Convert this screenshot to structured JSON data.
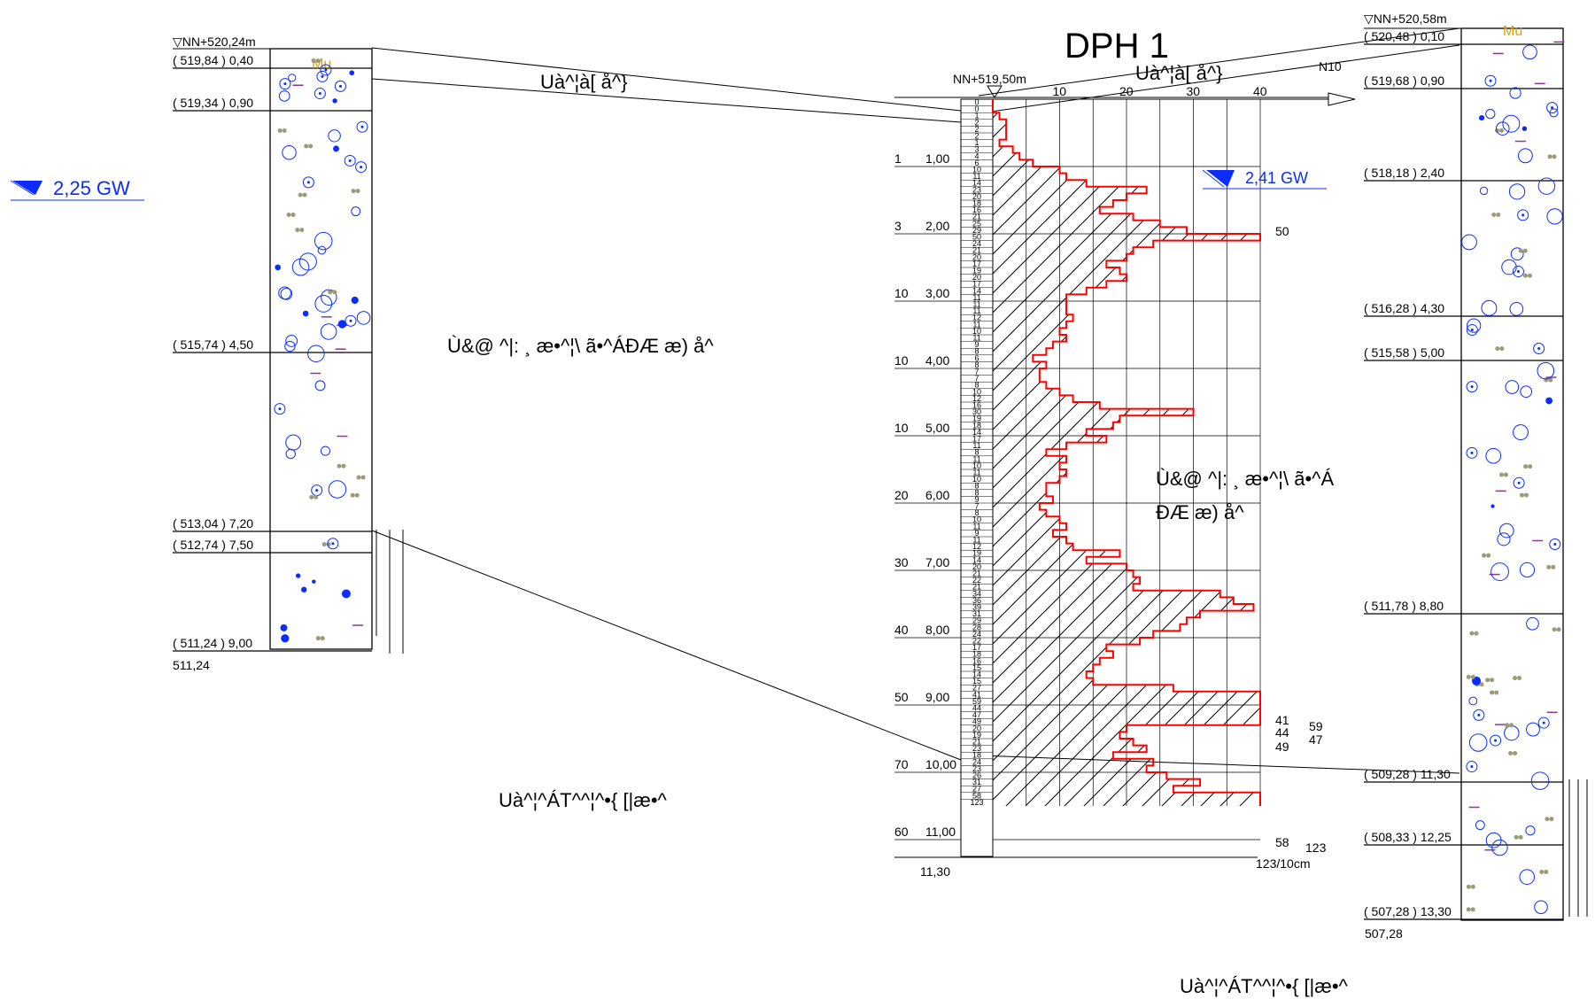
{
  "title": "DPH 1",
  "boreholes": {
    "left": {
      "top_elevation": "▽NN+520,24m",
      "bottom_label": "511,24",
      "groundwater": "2,25 GW",
      "top_unit_label": "Mu",
      "layers": [
        {
          "label": "( 519,84 ) 0,40"
        },
        {
          "label": "( 519,34 ) 0,90"
        },
        {
          "label": "( 515,74 ) 4,50"
        },
        {
          "label": "( 513,04 ) 7,20"
        },
        {
          "label": "( 512,74 ) 7,50"
        },
        {
          "label": "( 511,24 ) 9,00"
        }
      ]
    },
    "right": {
      "top_elevation": "▽NN+520,58m",
      "bottom_label": "507,28",
      "top_unit_label": "Mu",
      "layers": [
        {
          "label": "( 520,48 ) 0,10"
        },
        {
          "label": "( 519,68 ) 0,90"
        },
        {
          "label": "( 518,18 ) 2,40"
        },
        {
          "label": "( 516,28 ) 4,30"
        },
        {
          "label": "( 515,58 ) 5,00"
        },
        {
          "label": "( 511,78 ) 8,80"
        },
        {
          "label": "( 509,28 ) 11,30"
        },
        {
          "label": "( 508,33 ) 12,25"
        },
        {
          "label": "( 507,28 ) 13,30"
        }
      ]
    }
  },
  "probe": {
    "top_elevation": "NN+519,50m",
    "groundwater": "2,41 GW",
    "axis_label": "N10",
    "axis_ticks": [
      "10",
      "20",
      "30",
      "40"
    ],
    "bottom_depth": "11,30",
    "unit_note": "123/10cm",
    "depth_labels": [
      {
        "n": "1",
        "depth": "1,00"
      },
      {
        "n": "3",
        "depth": "2,00"
      },
      {
        "n": "10",
        "depth": "3,00"
      },
      {
        "n": "10",
        "depth": "4,00"
      },
      {
        "n": "10",
        "depth": "5,00"
      },
      {
        "n": "20",
        "depth": "6,00"
      },
      {
        "n": "30",
        "depth": "7,00"
      },
      {
        "n": "40",
        "depth": "8,00"
      },
      {
        "n": "50",
        "depth": "9,00"
      },
      {
        "n": "70",
        "depth": "10,00"
      },
      {
        "n": "60",
        "depth": "11,00"
      }
    ],
    "blows": [
      0,
      0,
      1,
      2,
      2,
      2,
      1,
      3,
      4,
      6,
      10,
      11,
      14,
      23,
      20,
      18,
      16,
      21,
      25,
      29,
      50,
      24,
      21,
      20,
      17,
      19,
      20,
      17,
      14,
      11,
      11,
      11,
      12,
      11,
      10,
      11,
      9,
      8,
      6,
      8,
      7,
      7,
      8,
      10,
      12,
      16,
      30,
      19,
      18,
      14,
      17,
      11,
      8,
      11,
      10,
      11,
      10,
      8,
      8,
      9,
      7,
      8,
      10,
      11,
      9,
      11,
      12,
      19,
      14,
      20,
      21,
      22,
      21,
      34,
      36,
      39,
      31,
      29,
      28,
      24,
      22,
      17,
      18,
      16,
      15,
      14,
      15,
      27,
      41,
      59,
      44,
      47,
      49,
      20,
      19,
      21,
      23,
      18,
      24,
      23,
      26,
      31,
      27,
      58,
      123
    ],
    "peak_labels": [
      "50",
      "41",
      "59",
      "44",
      "47",
      "49",
      "58",
      "123"
    ]
  },
  "annotations": {
    "garbled_1": "Uà^¦à[ å^}",
    "garbled_2": "Uà^¦à[ å^}",
    "garbled_3": "Ù&@ ^|: ¸ æ•^¦\\ ã•^ÁÐÆ æ) å^",
    "garbled_4": "Ù&@ ^|: ¸ æ•^¦\\ ã•^Á",
    "garbled_4b": "ÐÆ æ) å^",
    "garbled_5": "Uà^¦^ÁT^^¦^•{ [|æ•^",
    "garbled_6": "Uà^¦^ÁT^^¦^•{ [|æ•^"
  },
  "colors": {
    "profile": "#ff0000",
    "groundwater": "#0a2cff",
    "soil_symbols": "#9b9b7a",
    "accent": "#d4a017"
  }
}
